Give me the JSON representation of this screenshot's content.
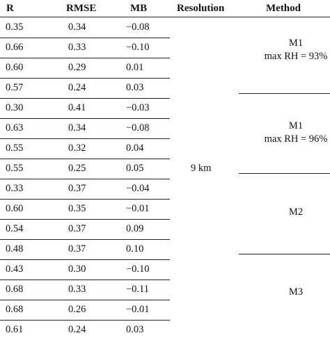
{
  "headers": [
    "R",
    "RMSE",
    "MB",
    "Resolution",
    "Method"
  ],
  "rows": [
    [
      "0.35",
      "0.34",
      "−0.08"
    ],
    [
      "0.66",
      "0.33",
      "−0.10"
    ],
    [
      "0.60",
      "0.29",
      "0.01"
    ],
    [
      "0.57",
      "0.24",
      "0.03"
    ],
    [
      "0.30",
      "0.41",
      "−0.03"
    ],
    [
      "0.63",
      "0.34",
      "−0.08"
    ],
    [
      "0.55",
      "0.32",
      "0.04"
    ],
    [
      "0.55",
      "0.25",
      "0.05"
    ],
    [
      "0.33",
      "0.37",
      "−0.04"
    ],
    [
      "0.60",
      "0.35",
      "−0.01"
    ],
    [
      "0.54",
      "0.37",
      "0.09"
    ],
    [
      "0.48",
      "0.37",
      "0.10"
    ],
    [
      "0.43",
      "0.30",
      "−0.10"
    ],
    [
      "0.68",
      "0.33",
      "−0.11"
    ],
    [
      "0.68",
      "0.26",
      "−0.01"
    ],
    [
      "0.61",
      "0.24",
      "0.03"
    ]
  ],
  "resolution": "9 km",
  "methods": [
    {
      "line1": "M1",
      "line2": "max RH = 93%"
    },
    {
      "line1": "M1",
      "line2": "max RH = 96%"
    },
    {
      "line1": "M2",
      "line2": ""
    },
    {
      "line1": "M3",
      "line2": ""
    }
  ]
}
